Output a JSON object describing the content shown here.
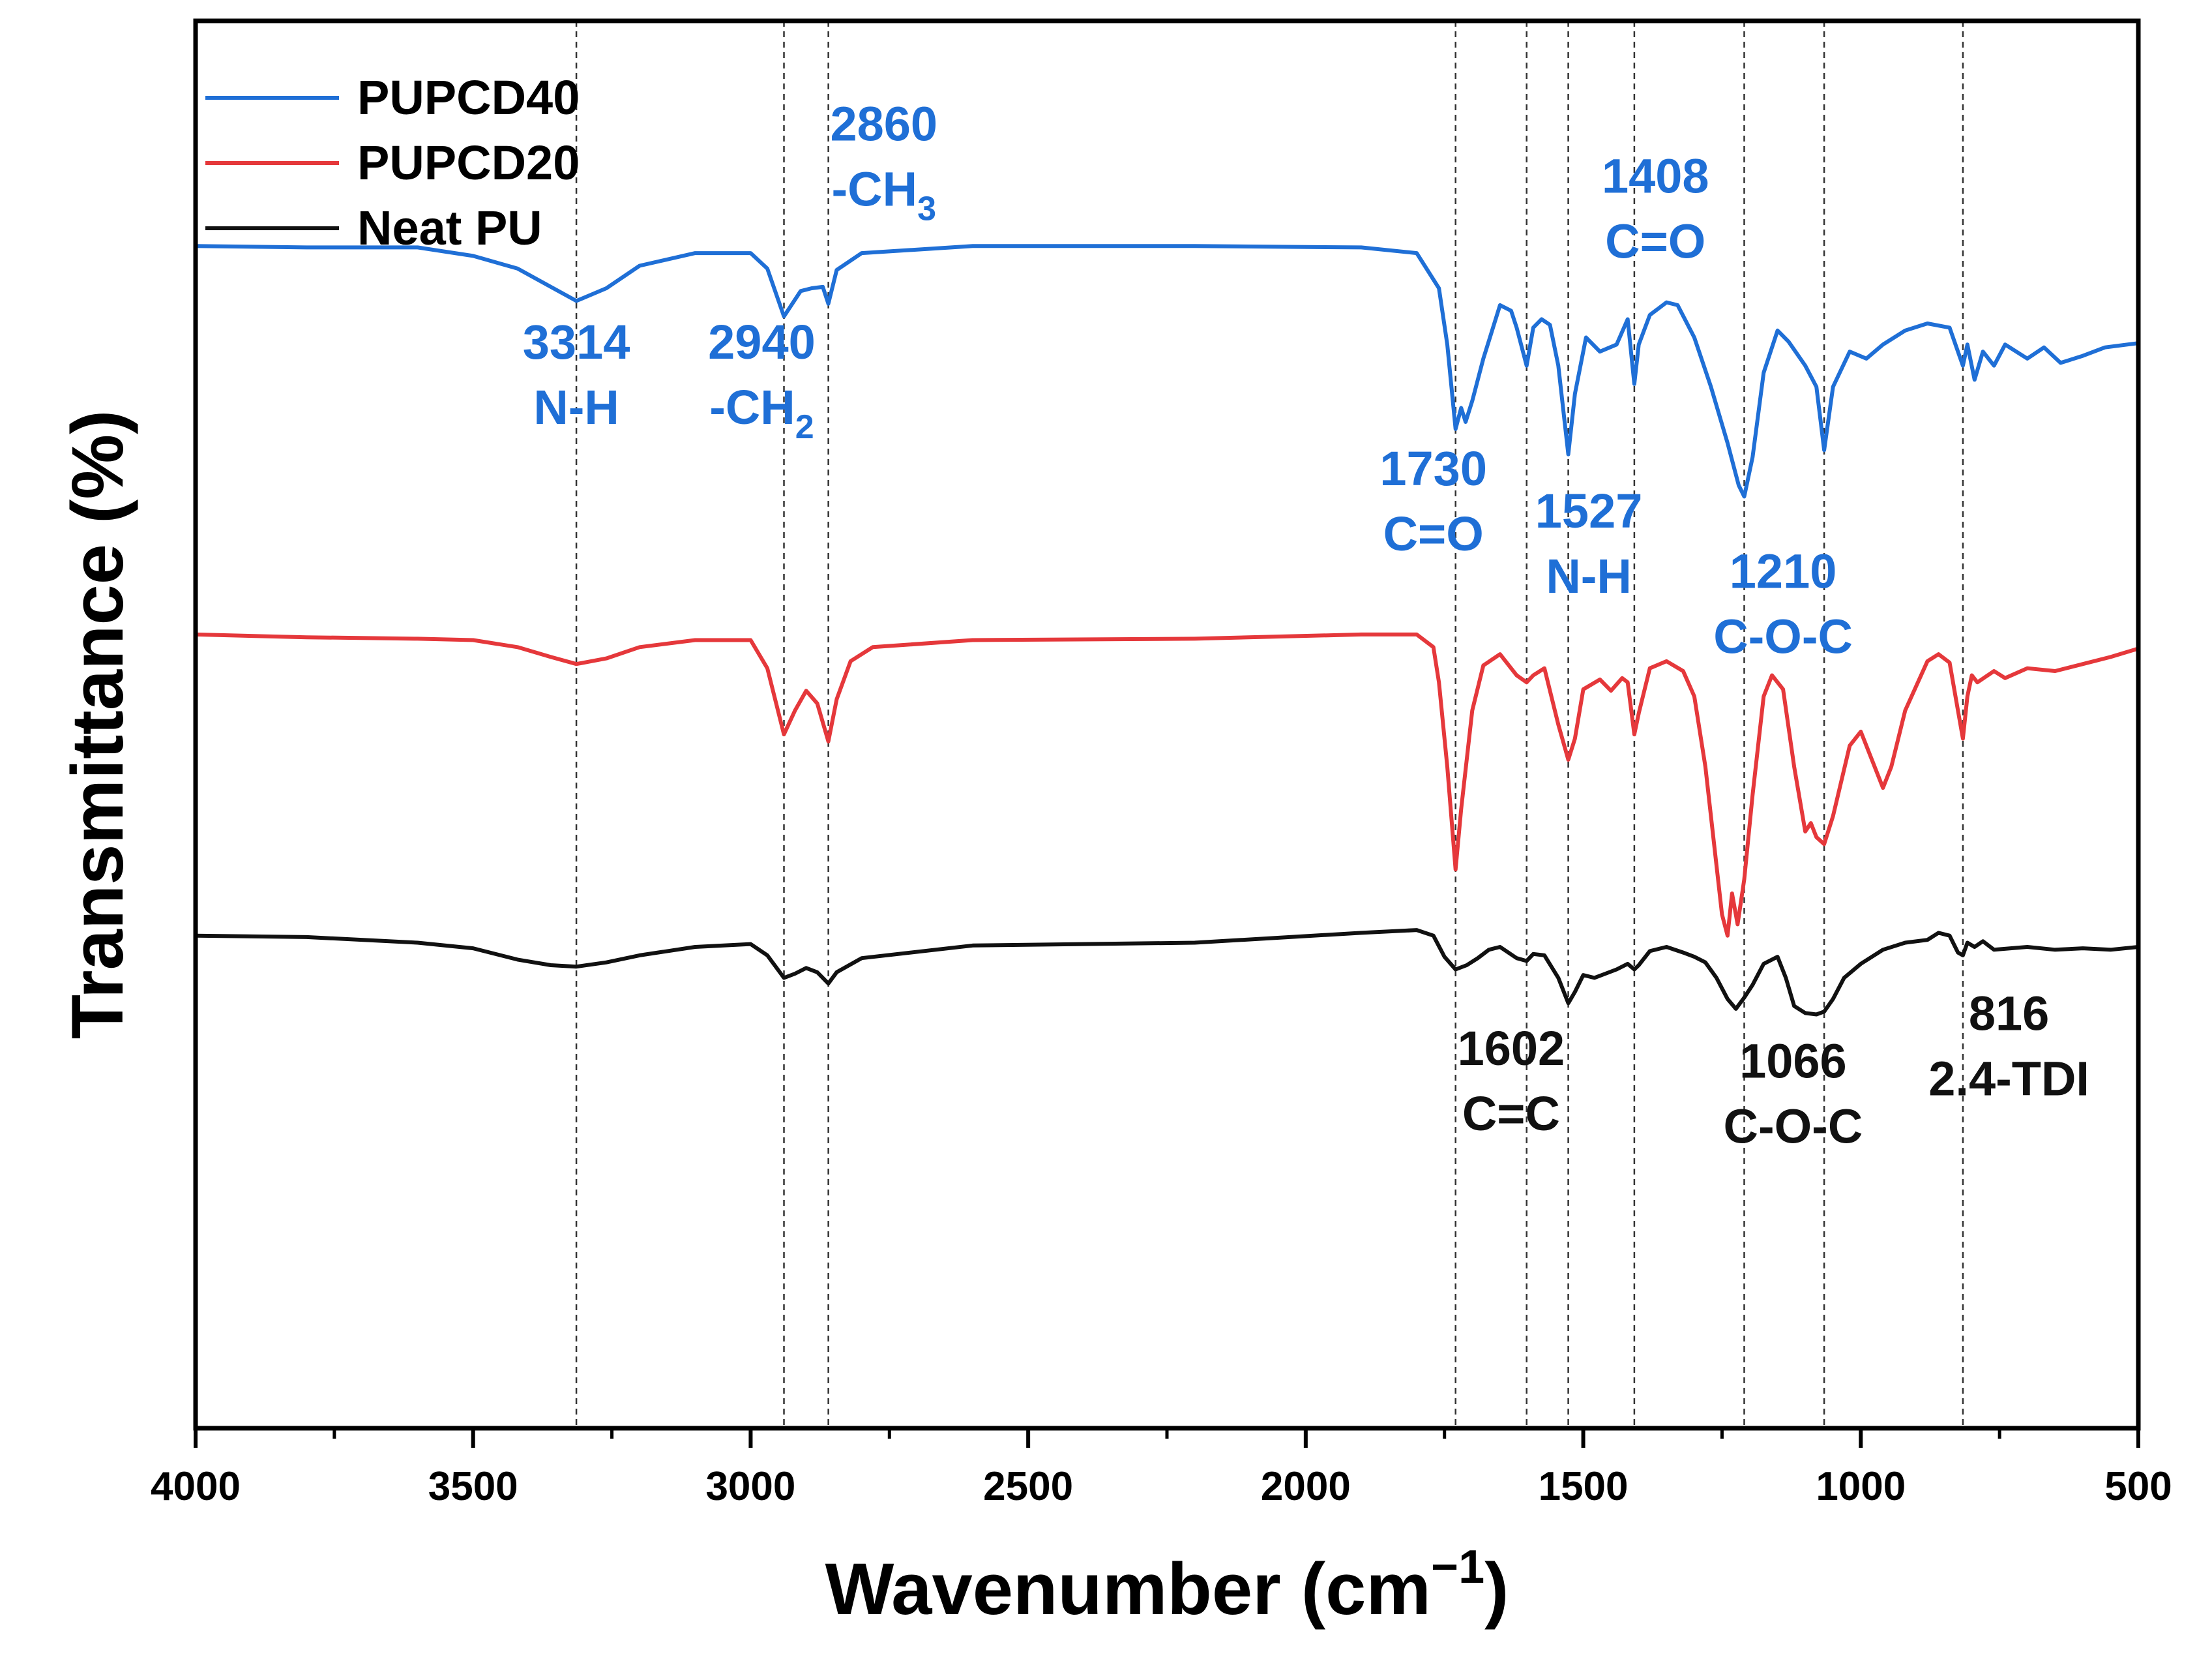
{
  "chart_data": {
    "type": "line",
    "title": "",
    "xlabel": "Wavenumber (cm",
    "xlabel_sup": "−1",
    "xlabel_close": ")",
    "ylabel": "Transmittance (%)",
    "xlim": [
      4000,
      500
    ],
    "x_reversed": true,
    "ylim": [
      0,
      100
    ],
    "y_ticks_visible": false,
    "x_ticks": [
      4000,
      3500,
      3000,
      2500,
      2000,
      1500,
      1000,
      500
    ],
    "x_tick_labels": [
      "4000",
      "3500",
      "3000",
      "2500",
      "2000",
      "1500",
      "1000",
      "500"
    ],
    "legend_position": "top-left",
    "grid": false,
    "reference_lines": [
      3314,
      2940,
      2860,
      1730,
      1602,
      1527,
      1408,
      1210,
      1066,
      816
    ],
    "series": [
      {
        "name": "PUPCD40",
        "color": "#1f6fd6",
        "points": [
          [
            4000,
            84.0
          ],
          [
            3800,
            83.9
          ],
          [
            3600,
            83.9
          ],
          [
            3500,
            83.3
          ],
          [
            3420,
            82.4
          ],
          [
            3360,
            81.1
          ],
          [
            3314,
            80.1
          ],
          [
            3260,
            81.0
          ],
          [
            3200,
            82.6
          ],
          [
            3100,
            83.5
          ],
          [
            3000,
            83.5
          ],
          [
            2970,
            82.4
          ],
          [
            2940,
            79.0
          ],
          [
            2910,
            80.8
          ],
          [
            2890,
            81.0
          ],
          [
            2870,
            81.1
          ],
          [
            2860,
            79.9
          ],
          [
            2845,
            82.3
          ],
          [
            2800,
            83.5
          ],
          [
            2600,
            84.0
          ],
          [
            2200,
            84.0
          ],
          [
            1900,
            83.9
          ],
          [
            1800,
            83.5
          ],
          [
            1760,
            81.0
          ],
          [
            1745,
            77.0
          ],
          [
            1730,
            71.0
          ],
          [
            1720,
            72.5
          ],
          [
            1712,
            71.5
          ],
          [
            1700,
            73.0
          ],
          [
            1680,
            76.0
          ],
          [
            1650,
            79.8
          ],
          [
            1630,
            79.4
          ],
          [
            1620,
            78.2
          ],
          [
            1602,
            75.5
          ],
          [
            1590,
            78.2
          ],
          [
            1575,
            78.8
          ],
          [
            1560,
            78.4
          ],
          [
            1545,
            75.5
          ],
          [
            1527,
            69.2
          ],
          [
            1515,
            73.5
          ],
          [
            1495,
            77.5
          ],
          [
            1470,
            76.5
          ],
          [
            1440,
            77.0
          ],
          [
            1420,
            78.8
          ],
          [
            1408,
            74.2
          ],
          [
            1400,
            77.0
          ],
          [
            1380,
            79.1
          ],
          [
            1350,
            80.0
          ],
          [
            1330,
            79.8
          ],
          [
            1300,
            77.5
          ],
          [
            1270,
            74.0
          ],
          [
            1240,
            70.0
          ],
          [
            1220,
            67.0
          ],
          [
            1210,
            66.2
          ],
          [
            1195,
            69.0
          ],
          [
            1175,
            75.0
          ],
          [
            1150,
            78.0
          ],
          [
            1130,
            77.2
          ],
          [
            1100,
            75.5
          ],
          [
            1080,
            74.0
          ],
          [
            1066,
            69.5
          ],
          [
            1050,
            74.0
          ],
          [
            1020,
            76.5
          ],
          [
            990,
            76.0
          ],
          [
            960,
            77.0
          ],
          [
            920,
            78.0
          ],
          [
            880,
            78.5
          ],
          [
            840,
            78.2
          ],
          [
            825,
            76.5
          ],
          [
            816,
            75.5
          ],
          [
            808,
            77.0
          ],
          [
            795,
            74.5
          ],
          [
            780,
            76.5
          ],
          [
            760,
            75.5
          ],
          [
            740,
            77.0
          ],
          [
            700,
            76.0
          ],
          [
            670,
            76.8
          ],
          [
            640,
            75.7
          ],
          [
            600,
            76.2
          ],
          [
            560,
            76.8
          ],
          [
            520,
            77.0
          ],
          [
            500,
            77.1
          ]
        ]
      },
      {
        "name": "PUPCD20",
        "color": "#e5383b",
        "points": [
          [
            4000,
            56.4
          ],
          [
            3800,
            56.2
          ],
          [
            3600,
            56.1
          ],
          [
            3500,
            56.0
          ],
          [
            3420,
            55.5
          ],
          [
            3360,
            54.8
          ],
          [
            3314,
            54.3
          ],
          [
            3260,
            54.7
          ],
          [
            3200,
            55.5
          ],
          [
            3100,
            56.0
          ],
          [
            3000,
            56.0
          ],
          [
            2970,
            54.0
          ],
          [
            2940,
            49.3
          ],
          [
            2920,
            51.0
          ],
          [
            2900,
            52.4
          ],
          [
            2880,
            51.5
          ],
          [
            2860,
            48.8
          ],
          [
            2845,
            51.8
          ],
          [
            2820,
            54.5
          ],
          [
            2780,
            55.5
          ],
          [
            2600,
            56.0
          ],
          [
            2200,
            56.1
          ],
          [
            1900,
            56.4
          ],
          [
            1800,
            56.4
          ],
          [
            1770,
            55.5
          ],
          [
            1760,
            53.0
          ],
          [
            1745,
            47.0
          ],
          [
            1730,
            39.7
          ],
          [
            1720,
            44.0
          ],
          [
            1700,
            51.0
          ],
          [
            1680,
            54.2
          ],
          [
            1650,
            55.0
          ],
          [
            1620,
            53.5
          ],
          [
            1602,
            53.0
          ],
          [
            1590,
            53.5
          ],
          [
            1570,
            54.0
          ],
          [
            1545,
            50.0
          ],
          [
            1527,
            47.5
          ],
          [
            1515,
            49.0
          ],
          [
            1500,
            52.5
          ],
          [
            1470,
            53.2
          ],
          [
            1450,
            52.4
          ],
          [
            1430,
            53.3
          ],
          [
            1420,
            53.0
          ],
          [
            1408,
            49.3
          ],
          [
            1400,
            50.8
          ],
          [
            1380,
            54.0
          ],
          [
            1350,
            54.5
          ],
          [
            1320,
            53.8
          ],
          [
            1300,
            52.0
          ],
          [
            1280,
            47.0
          ],
          [
            1260,
            40.0
          ],
          [
            1250,
            36.5
          ],
          [
            1240,
            35.0
          ],
          [
            1232,
            38.0
          ],
          [
            1222,
            35.8
          ],
          [
            1210,
            39.0
          ],
          [
            1195,
            45.0
          ],
          [
            1175,
            52.0
          ],
          [
            1160,
            53.5
          ],
          [
            1140,
            52.5
          ],
          [
            1120,
            47.0
          ],
          [
            1100,
            42.4
          ],
          [
            1090,
            43.0
          ],
          [
            1080,
            42.0
          ],
          [
            1066,
            41.5
          ],
          [
            1050,
            43.5
          ],
          [
            1020,
            48.5
          ],
          [
            1000,
            49.5
          ],
          [
            960,
            45.5
          ],
          [
            945,
            47.0
          ],
          [
            920,
            51.0
          ],
          [
            880,
            54.5
          ],
          [
            860,
            55.0
          ],
          [
            840,
            54.4
          ],
          [
            825,
            51.0
          ],
          [
            816,
            49.0
          ],
          [
            808,
            52.0
          ],
          [
            800,
            53.5
          ],
          [
            790,
            53.0
          ],
          [
            760,
            53.8
          ],
          [
            740,
            53.3
          ],
          [
            700,
            54.0
          ],
          [
            650,
            53.8
          ],
          [
            600,
            54.3
          ],
          [
            550,
            54.8
          ],
          [
            500,
            55.4
          ]
        ]
      },
      {
        "name": "Neat PU",
        "color": "#111111",
        "points": [
          [
            4000,
            35.0
          ],
          [
            3800,
            34.9
          ],
          [
            3600,
            34.5
          ],
          [
            3500,
            34.1
          ],
          [
            3420,
            33.3
          ],
          [
            3360,
            32.9
          ],
          [
            3314,
            32.8
          ],
          [
            3260,
            33.1
          ],
          [
            3200,
            33.6
          ],
          [
            3100,
            34.2
          ],
          [
            3000,
            34.4
          ],
          [
            2970,
            33.6
          ],
          [
            2940,
            32.0
          ],
          [
            2920,
            32.3
          ],
          [
            2900,
            32.7
          ],
          [
            2880,
            32.4
          ],
          [
            2860,
            31.6
          ],
          [
            2845,
            32.4
          ],
          [
            2800,
            33.4
          ],
          [
            2600,
            34.3
          ],
          [
            2200,
            34.5
          ],
          [
            1900,
            35.2
          ],
          [
            1800,
            35.4
          ],
          [
            1770,
            35.0
          ],
          [
            1750,
            33.5
          ],
          [
            1730,
            32.6
          ],
          [
            1710,
            32.9
          ],
          [
            1690,
            33.4
          ],
          [
            1670,
            34.0
          ],
          [
            1650,
            34.2
          ],
          [
            1620,
            33.4
          ],
          [
            1602,
            33.2
          ],
          [
            1590,
            33.7
          ],
          [
            1570,
            33.6
          ],
          [
            1545,
            32.0
          ],
          [
            1527,
            30.2
          ],
          [
            1515,
            31.0
          ],
          [
            1500,
            32.2
          ],
          [
            1480,
            32.0
          ],
          [
            1460,
            32.3
          ],
          [
            1440,
            32.6
          ],
          [
            1420,
            33.0
          ],
          [
            1408,
            32.6
          ],
          [
            1400,
            32.9
          ],
          [
            1380,
            33.9
          ],
          [
            1350,
            34.2
          ],
          [
            1320,
            33.8
          ],
          [
            1300,
            33.5
          ],
          [
            1280,
            33.1
          ],
          [
            1260,
            32.0
          ],
          [
            1240,
            30.5
          ],
          [
            1225,
            29.8
          ],
          [
            1210,
            30.6
          ],
          [
            1195,
            31.5
          ],
          [
            1175,
            33.0
          ],
          [
            1150,
            33.5
          ],
          [
            1135,
            32.0
          ],
          [
            1120,
            30.0
          ],
          [
            1100,
            29.5
          ],
          [
            1080,
            29.4
          ],
          [
            1066,
            29.6
          ],
          [
            1050,
            30.5
          ],
          [
            1030,
            32.0
          ],
          [
            1000,
            33.0
          ],
          [
            960,
            34.0
          ],
          [
            920,
            34.5
          ],
          [
            880,
            34.7
          ],
          [
            860,
            35.2
          ],
          [
            840,
            35.0
          ],
          [
            825,
            33.8
          ],
          [
            816,
            33.6
          ],
          [
            808,
            34.5
          ],
          [
            795,
            34.2
          ],
          [
            780,
            34.6
          ],
          [
            760,
            34.0
          ],
          [
            700,
            34.2
          ],
          [
            650,
            34.0
          ],
          [
            600,
            34.1
          ],
          [
            550,
            34.0
          ],
          [
            500,
            34.2
          ]
        ]
      }
    ],
    "annotations": [
      {
        "number": "3314",
        "group": "N-H",
        "group_sub": "",
        "color": "#1f6fd6",
        "x": 3314,
        "y": 76.0
      },
      {
        "number": "2940",
        "group": "-CH",
        "group_sub": "2",
        "color": "#1f6fd6",
        "x": 2980,
        "y": 76.0
      },
      {
        "number": "2860",
        "group": "-CH",
        "group_sub": "3",
        "color": "#1f6fd6",
        "x": 2760,
        "y": 91.5
      },
      {
        "number": "1730",
        "group": "C=O",
        "group_sub": "",
        "color": "#1f6fd6",
        "x": 1770,
        "y": 67.0
      },
      {
        "number": "1527",
        "group": "N-H",
        "group_sub": "",
        "color": "#1f6fd6",
        "x": 1490,
        "y": 64.0
      },
      {
        "number": "1408",
        "group": "C=O",
        "group_sub": "",
        "color": "#1f6fd6",
        "x": 1370,
        "y": 87.8
      },
      {
        "number": "1210",
        "group": "C-O-C",
        "group_sub": "",
        "color": "#1f6fd6",
        "x": 1140,
        "y": 59.7
      },
      {
        "number": "1602",
        "group": "C=C",
        "group_sub": "",
        "color": "#111111",
        "x": 1630,
        "y": 25.8
      },
      {
        "number": "1066",
        "group": "C-O-C",
        "group_sub": "",
        "color": "#111111",
        "x": 1122,
        "y": 24.9
      },
      {
        "number": "816",
        "group": "2.4-TDI",
        "group_sub": "",
        "color": "#111111",
        "x": 733,
        "y": 28.3
      }
    ]
  }
}
